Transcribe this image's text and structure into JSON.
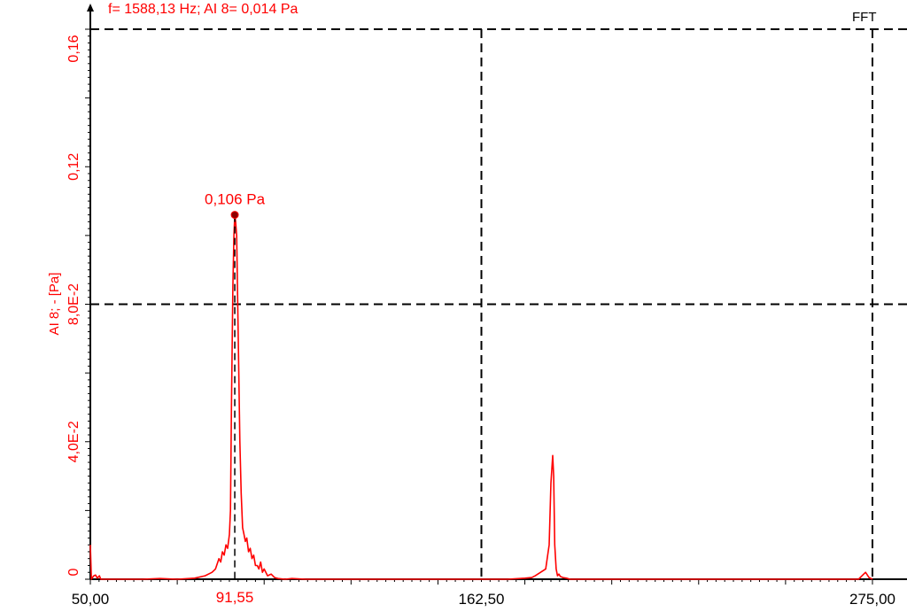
{
  "header": {
    "cursor_readout": "f= 1588,13 Hz; AI 8= 0,014 Pa",
    "panel_label": "FFT"
  },
  "colors": {
    "signal": "#ff0000",
    "axis": "#000000",
    "grid": "#000000",
    "background": "#ffffff"
  },
  "chart_data": {
    "type": "line",
    "title": "",
    "xlabel": "",
    "ylabel": "AI 8; - [Pa]",
    "xlim": [
      50,
      275
    ],
    "ylim": [
      0,
      0.16
    ],
    "grid": true,
    "x_ticks": [
      {
        "value": 50,
        "label": "50,00"
      },
      {
        "value": 162.5,
        "label": "162,50"
      },
      {
        "value": 275,
        "label": "275,00"
      }
    ],
    "y_ticks": [
      {
        "value": 0,
        "label": "0"
      },
      {
        "value": 0.04,
        "label": "4,0E-2"
      },
      {
        "value": 0.08,
        "label": "8,0E-2"
      },
      {
        "value": 0.12,
        "label": "0,12"
      },
      {
        "value": 0.16,
        "label": "0,16"
      }
    ],
    "grid_x": [
      162.5,
      275
    ],
    "grid_y": [
      0.08,
      0.16
    ],
    "marker": {
      "x": 91.55,
      "y": 0.106,
      "x_label": "91,55",
      "y_label": "0,106 Pa"
    },
    "series": [
      {
        "x": [
          50.0,
          50.3,
          50.6,
          51,
          51.5,
          52,
          52.6,
          53,
          54,
          56,
          60,
          65,
          70,
          75,
          80,
          83,
          85,
          86,
          87,
          87.5,
          88,
          88.5,
          89,
          89.5,
          90,
          90.3,
          90.6,
          91,
          91.3,
          91.55,
          91.8,
          92.1,
          92.4,
          92.7,
          93,
          93.4,
          93.8,
          94.2,
          94.6,
          95,
          95.5,
          96,
          96.5,
          97,
          97.5,
          98,
          98.5,
          99,
          99.5,
          100,
          101,
          102,
          103,
          104,
          106,
          108,
          112,
          120,
          130,
          140,
          150,
          160,
          170,
          175,
          177,
          178,
          181,
          182,
          182.5,
          183,
          183.3,
          183.6,
          184,
          184.4,
          184.8,
          185.2,
          186,
          187,
          188,
          190,
          200,
          220,
          240,
          260,
          270,
          271,
          272,
          273,
          274,
          275
        ],
        "y": [
          0.01,
          0.0,
          0.0005,
          0.001,
          0.0012,
          0.0003,
          0.001,
          0.0,
          0.0,
          0.0,
          0.0,
          0.0,
          0.0002,
          0.0,
          0.0003,
          0.001,
          0.002,
          0.003,
          0.006,
          0.005,
          0.008,
          0.007,
          0.01,
          0.009,
          0.013,
          0.02,
          0.05,
          0.085,
          0.1,
          0.106,
          0.104,
          0.1,
          0.08,
          0.06,
          0.04,
          0.025,
          0.015,
          0.013,
          0.011,
          0.012,
          0.008,
          0.009,
          0.006,
          0.007,
          0.004,
          0.004,
          0.003,
          0.005,
          0.002,
          0.003,
          0.001,
          0.0015,
          0.0005,
          0.0002,
          0.0,
          0.0002,
          0.0,
          0.0,
          0.0,
          0.0,
          0.0,
          0.0,
          0.0,
          0.0003,
          0.0005,
          0.001,
          0.003,
          0.01,
          0.028,
          0.036,
          0.03,
          0.01,
          0.003,
          0.001,
          0.0015,
          0.0008,
          0.0005,
          0.0003,
          0.0,
          0.0,
          0.0,
          0.0,
          0.0,
          0.0,
          0.0,
          0.0,
          0.001,
          0.002,
          0.0005,
          0.0
        ]
      }
    ]
  }
}
